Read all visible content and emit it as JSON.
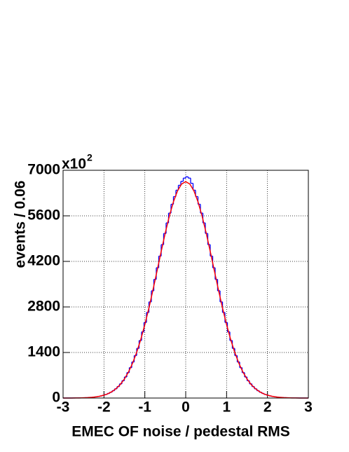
{
  "chart_data": {
    "type": "histogram",
    "xlabel": "EMEC OF noise / pedestal RMS",
    "ylabel": "events / 0.06",
    "y_multiplier": "x10",
    "y_multiplier_exponent": "2",
    "xlim": [
      -3,
      3
    ],
    "ylim": [
      0,
      7000
    ],
    "xticks": [
      -3,
      -2,
      -1,
      0,
      1,
      2,
      3
    ],
    "yticks": [
      0,
      1400,
      2800,
      4200,
      5600,
      7000
    ],
    "grid": true,
    "color": "#0000ff",
    "bins": [
      -3,
      -2.94,
      -2.88,
      -2.82,
      -2.76,
      -2.7,
      -2.64,
      -2.58,
      -2.52,
      -2.46,
      -2.4,
      -2.34,
      -2.28,
      -2.22,
      -2.16,
      -2.1,
      -2.04,
      -1.98,
      -1.92,
      -1.86,
      -1.8,
      -1.74,
      -1.68,
      -1.62,
      -1.56,
      -1.5,
      -1.44,
      -1.38,
      -1.32,
      -1.26,
      -1.2,
      -1.14,
      -1.08,
      -1.02,
      -0.96,
      -0.9,
      -0.84,
      -0.78,
      -0.72,
      -0.66,
      -0.6,
      -0.54,
      -0.48,
      -0.42,
      -0.36,
      -0.3,
      -0.24,
      -0.18,
      -0.12,
      -0.06,
      0,
      0.06,
      0.12,
      0.18,
      0.24,
      0.3,
      0.36,
      0.42,
      0.48,
      0.54,
      0.6,
      0.66,
      0.72,
      0.78,
      0.84,
      0.9,
      0.96,
      1.02,
      1.08,
      1.14,
      1.2,
      1.26,
      1.32,
      1.38,
      1.44,
      1.5,
      1.56,
      1.62,
      1.68,
      1.74,
      1.8,
      1.86,
      1.92,
      1.98,
      2.04,
      2.1,
      2.16,
      2.22,
      2.28,
      2.34,
      2.4,
      2.46,
      2.52,
      2.58,
      2.64,
      2.7,
      2.76,
      2.82,
      2.88,
      2.94,
      3
    ],
    "values": [
      0,
      1,
      1,
      1,
      2,
      3,
      4,
      6,
      8,
      11,
      15,
      21,
      28,
      38,
      50,
      65,
      85,
      110,
      141,
      179,
      226,
      284,
      353,
      436,
      533,
      648,
      781,
      934,
      1108,
      1305,
      1525,
      1768,
      2034,
      2322,
      2630,
      2955,
      3296,
      3647,
      4004,
      4362,
      4715,
      5058,
      5382,
      5684,
      5956,
      6192,
      6388,
      6539,
      6660,
      6760,
      6800,
      6760,
      6600,
      6388,
      6192,
      5956,
      5684,
      5382,
      5058,
      4715,
      4362,
      4004,
      3647,
      3296,
      2955,
      2630,
      2322,
      2034,
      1768,
      1525,
      1305,
      1108,
      934,
      781,
      648,
      533,
      436,
      353,
      284,
      226,
      179,
      141,
      110,
      85,
      65,
      50,
      38,
      28,
      21,
      15,
      11,
      8,
      6,
      4,
      3,
      2,
      1,
      1,
      1,
      0
    ],
    "fit": {
      "type": "line",
      "color": "#ff0000",
      "x": [
        -3,
        -2.9,
        -2.8,
        -2.7,
        -2.6,
        -2.5,
        -2.4,
        -2.3,
        -2.2,
        -2.1,
        -2,
        -1.9,
        -1.8,
        -1.7,
        -1.6,
        -1.5,
        -1.4,
        -1.3,
        -1.2,
        -1.1,
        -1,
        -0.9,
        -0.8,
        -0.7,
        -0.6,
        -0.5,
        -0.4,
        -0.3,
        -0.2,
        -0.1,
        0,
        0.1,
        0.2,
        0.3,
        0.4,
        0.5,
        0.6,
        0.7,
        0.8,
        0.9,
        1,
        1.1,
        1.2,
        1.3,
        1.4,
        1.5,
        1.6,
        1.7,
        1.8,
        1.9,
        2,
        2.1,
        2.2,
        2.3,
        2.4,
        2.5,
        2.6,
        2.7,
        2.8,
        2.9,
        3
      ],
      "values": [
        0,
        1,
        1,
        3,
        4,
        8,
        13,
        22,
        36,
        57,
        88,
        134,
        200,
        292,
        418,
        584,
        799,
        1069,
        1402,
        1798,
        2256,
        2770,
        3329,
        3915,
        4506,
        5075,
        5593,
        6034,
        6369,
        6579,
        6650,
        6579,
        6369,
        6034,
        5593,
        5075,
        4506,
        3915,
        3329,
        2770,
        2256,
        1798,
        1402,
        1069,
        799,
        584,
        418,
        292,
        200,
        134,
        88,
        57,
        36,
        22,
        13,
        8,
        4,
        3,
        1,
        1,
        0
      ]
    }
  }
}
